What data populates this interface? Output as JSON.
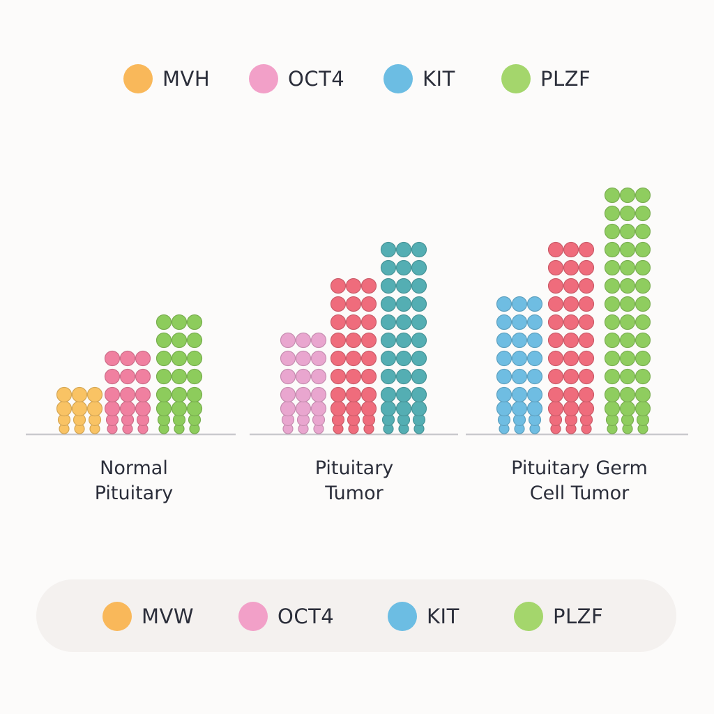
{
  "legend_top": [
    {
      "label": "MVH",
      "color": "#f9b85a"
    },
    {
      "label": "OCT4",
      "color": "#f2a0c8"
    },
    {
      "label": "KIT",
      "color": "#6cbde3"
    },
    {
      "label": "PLZF",
      "color": "#a4d66c"
    }
  ],
  "legend_bottom": [
    {
      "label": "MVW",
      "color": "#f9b85a"
    },
    {
      "label": "OCT4",
      "color": "#f2a0c8"
    },
    {
      "label": "KIT",
      "color": "#6cbde3"
    },
    {
      "label": "PLZF",
      "color": "#a4d66c"
    }
  ],
  "chart_data": {
    "type": "bar",
    "title": "",
    "xlabel": "",
    "ylabel": "",
    "grid": false,
    "legend_position": "top",
    "categories": [
      [
        "Normal",
        "Pituitary"
      ],
      [
        "Pituitary",
        "Tumor"
      ],
      [
        "Pituitary Germ",
        "Cell Tumor"
      ]
    ],
    "groups": [
      {
        "bars": [
          {
            "marker": "MVH",
            "value": 2.5,
            "color": "#f9c364"
          },
          {
            "marker": "OCT4",
            "value": 4.5,
            "color": "#f080a0"
          },
          {
            "marker": "PLZF",
            "value": 6.5,
            "color": "#8dcc5c"
          }
        ]
      },
      {
        "bars": [
          {
            "marker": "OCT4",
            "value": 6,
            "color": "#e9a6cf"
          },
          {
            "marker": "OCT4",
            "value": 8,
            "color": "#ef6c7c"
          },
          {
            "marker": "KIT",
            "value": 10,
            "color": "#54aeb3"
          }
        ]
      },
      {
        "bars": [
          {
            "marker": "KIT",
            "value": 7.5,
            "color": "#6fbde2"
          },
          {
            "marker": "OCT4",
            "value": 10.5,
            "color": "#ef6c7c"
          },
          {
            "marker": "PLZF",
            "value": 13,
            "color": "#8fcd5f"
          }
        ]
      }
    ]
  }
}
